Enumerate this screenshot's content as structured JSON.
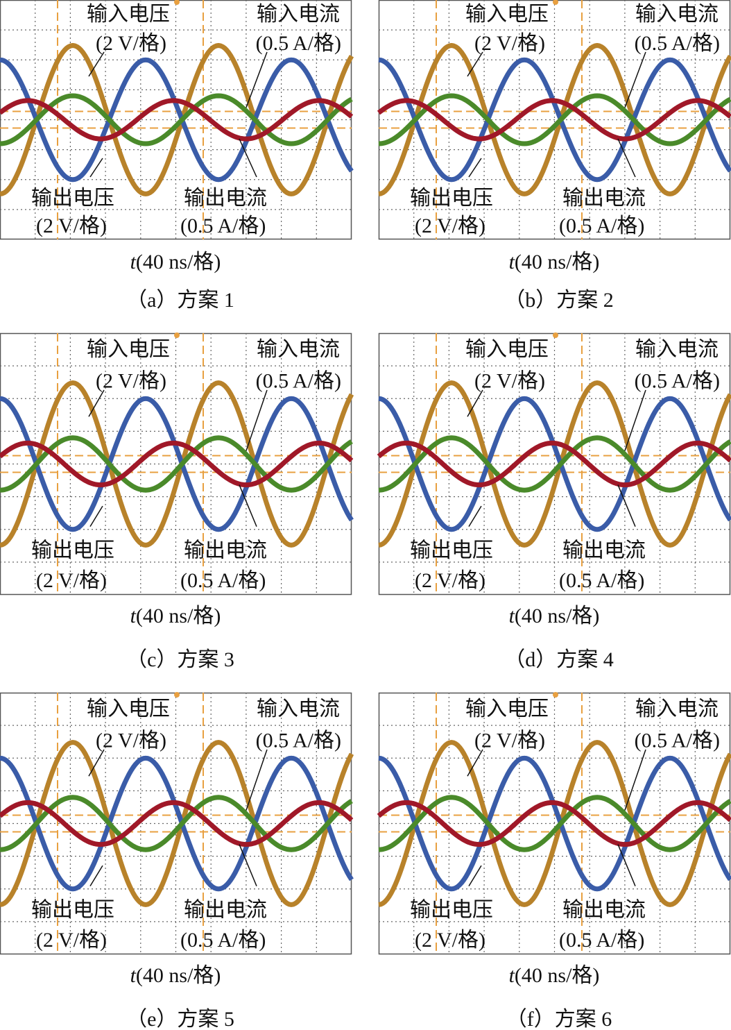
{
  "panels": [
    {
      "caption": "（a）方案 1",
      "time_var": "t",
      "time_scale": "(40 ns/格)",
      "in_v": "输入电压",
      "in_v_scale": "(2 V/格)",
      "in_i": "输入电流",
      "in_i_scale": "(0.5 A/格)",
      "out_v": "输出电压",
      "out_v_scale": "(2 V/格)",
      "out_i": "输出电流",
      "out_i_scale": "(0.5 A/格)"
    },
    {
      "caption": "（b）方案 2",
      "time_var": "t",
      "time_scale": "(40 ns/格)",
      "in_v": "输入电压",
      "in_v_scale": "(2 V/格)",
      "in_i": "输入电流",
      "in_i_scale": "(0.5 A/格)",
      "out_v": "输出电压",
      "out_v_scale": "(2 V/格)",
      "out_i": "输出电流",
      "out_i_scale": "(0.5 A/格)"
    },
    {
      "caption": "（c）方案 3",
      "time_var": "t",
      "time_scale": "(40 ns/格)",
      "in_v": "输入电压",
      "in_v_scale": "(2 V/格)",
      "in_i": "输入电流",
      "in_i_scale": "(0.5 A/格)",
      "out_v": "输出电压",
      "out_v_scale": "(2 V/格)",
      "out_i": "输出电流",
      "out_i_scale": "(0.5 A/格)"
    },
    {
      "caption": "（d）方案 4",
      "time_var": "t",
      "time_scale": "(40 ns/格)",
      "in_v": "输入电压",
      "in_v_scale": "(2 V/格)",
      "in_i": "输入电流",
      "in_i_scale": "(0.5 A/格)",
      "out_v": "输出电压",
      "out_v_scale": "(2 V/格)",
      "out_i": "输出电流",
      "out_i_scale": "(0.5 A/格)"
    },
    {
      "caption": "（e）方案 5",
      "time_var": "t",
      "time_scale": "(40 ns/格)",
      "in_v": "输入电压",
      "in_v_scale": "(2 V/格)",
      "in_i": "输入电流",
      "in_i_scale": "(0.5 A/格)",
      "out_v": "输出电压",
      "out_v_scale": "(2 V/格)",
      "out_i": "输出电流",
      "out_i_scale": "(0.5 A/格)"
    },
    {
      "caption": "（f）方案 6",
      "time_var": "t",
      "time_scale": "(40 ns/格)",
      "in_v": "输入电压",
      "in_v_scale": "(2 V/格)",
      "in_i": "输入电流",
      "in_i_scale": "(0.5 A/格)",
      "out_v": "输出电压",
      "out_v_scale": "(2 V/格)",
      "out_i": "输出电流",
      "out_i_scale": "(0.5 A/格)"
    }
  ]
}
